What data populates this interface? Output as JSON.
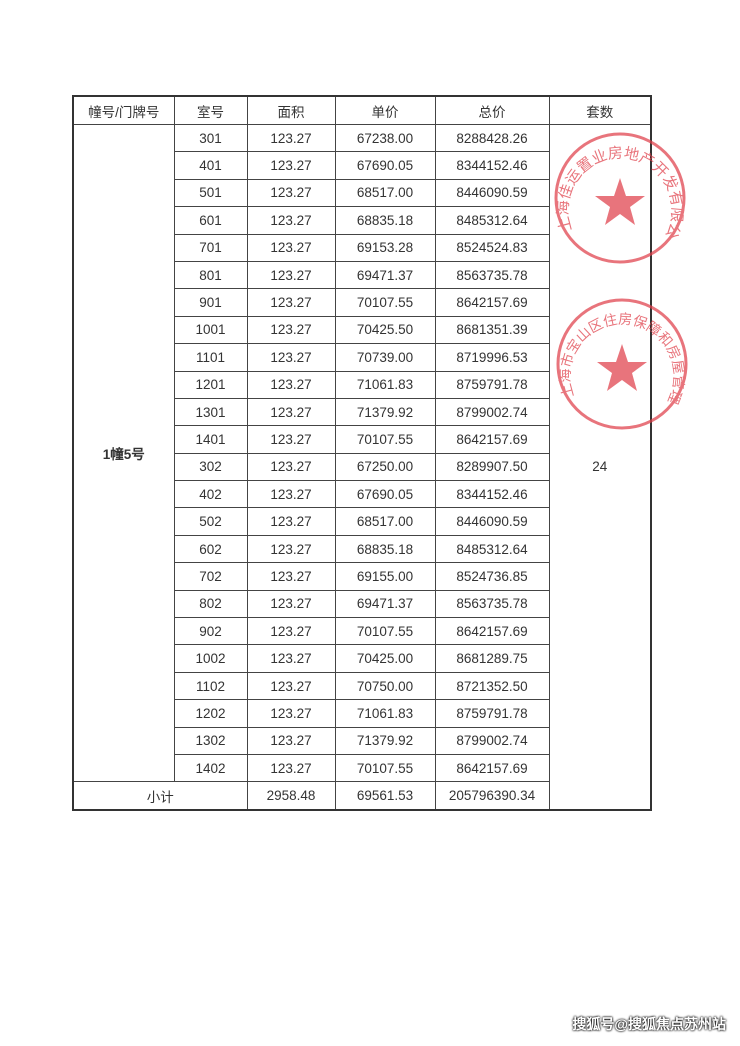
{
  "table": {
    "headers": [
      "幢号/门牌号",
      "室号",
      "面积",
      "单价",
      "总价",
      "套数"
    ],
    "building": "1幢5号",
    "unit_count": "24",
    "rows": [
      [
        "301",
        "123.27",
        "67238.00",
        "8288428.26"
      ],
      [
        "401",
        "123.27",
        "67690.05",
        "8344152.46"
      ],
      [
        "501",
        "123.27",
        "68517.00",
        "8446090.59"
      ],
      [
        "601",
        "123.27",
        "68835.18",
        "8485312.64"
      ],
      [
        "701",
        "123.27",
        "69153.28",
        "8524524.83"
      ],
      [
        "801",
        "123.27",
        "69471.37",
        "8563735.78"
      ],
      [
        "901",
        "123.27",
        "70107.55",
        "8642157.69"
      ],
      [
        "1001",
        "123.27",
        "70425.50",
        "8681351.39"
      ],
      [
        "1101",
        "123.27",
        "70739.00",
        "8719996.53"
      ],
      [
        "1201",
        "123.27",
        "71061.83",
        "8759791.78"
      ],
      [
        "1301",
        "123.27",
        "71379.92",
        "8799002.74"
      ],
      [
        "1401",
        "123.27",
        "70107.55",
        "8642157.69"
      ],
      [
        "302",
        "123.27",
        "67250.00",
        "8289907.50"
      ],
      [
        "402",
        "123.27",
        "67690.05",
        "8344152.46"
      ],
      [
        "502",
        "123.27",
        "68517.00",
        "8446090.59"
      ],
      [
        "602",
        "123.27",
        "68835.18",
        "8485312.64"
      ],
      [
        "702",
        "123.27",
        "69155.00",
        "8524736.85"
      ],
      [
        "802",
        "123.27",
        "69471.37",
        "8563735.78"
      ],
      [
        "902",
        "123.27",
        "70107.55",
        "8642157.69"
      ],
      [
        "1002",
        "123.27",
        "70425.00",
        "8681289.75"
      ],
      [
        "1102",
        "123.27",
        "70750.00",
        "8721352.50"
      ],
      [
        "1202",
        "123.27",
        "71061.83",
        "8759791.78"
      ],
      [
        "1302",
        "123.27",
        "71379.92",
        "8799002.74"
      ],
      [
        "1402",
        "123.27",
        "70107.55",
        "8642157.69"
      ]
    ],
    "subtotal": {
      "label": "小计",
      "area": "2958.48",
      "unit_price": "69561.53",
      "total": "205796390.34"
    }
  },
  "stamps": [
    {
      "text": "上海佳运置业房地产开发有限公司",
      "color": "#e0404a"
    },
    {
      "text": "上海市宝山区住房保障和房屋管理局",
      "color": "#e0404a"
    }
  ],
  "watermark": "搜狐号@搜狐焦点苏州站"
}
